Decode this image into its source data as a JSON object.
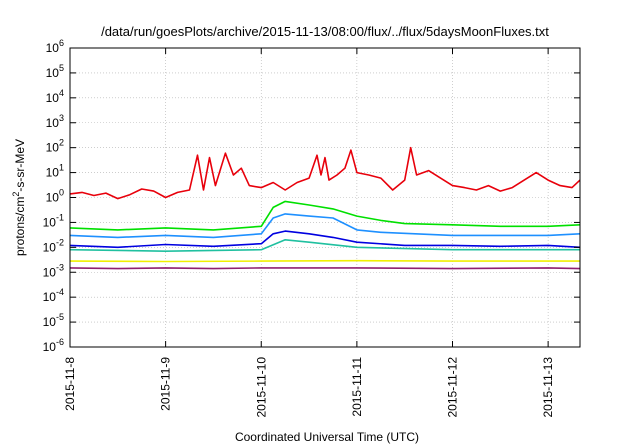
{
  "chart_data": {
    "type": "line",
    "title": "/data/run/goesPlots/archive/2015-11-13/08:00/flux/../flux/5daysMoonFluxes.txt",
    "xlabel": "Coordinated Universal Time (UTC)",
    "ylabel_parts": {
      "prefix": "protons/cm",
      "exponent": "2",
      "suffix": "-s-sr-MeV"
    },
    "y_scale": "log",
    "ylim": [
      1e-06,
      1000000.0
    ],
    "y_ticks": [
      {
        "base": "10",
        "exp": "-6"
      },
      {
        "base": "10",
        "exp": "-5"
      },
      {
        "base": "10",
        "exp": "-4"
      },
      {
        "base": "10",
        "exp": "-3"
      },
      {
        "base": "10",
        "exp": "-2"
      },
      {
        "base": "10",
        "exp": "-1"
      },
      {
        "base": "10",
        "exp": "0"
      },
      {
        "base": "10",
        "exp": "1"
      },
      {
        "base": "10",
        "exp": "2"
      },
      {
        "base": "10",
        "exp": "3"
      },
      {
        "base": "10",
        "exp": "4"
      },
      {
        "base": "10",
        "exp": "5"
      },
      {
        "base": "10",
        "exp": "6"
      }
    ],
    "x_ticks": [
      "2015-11-8",
      "2015-11-9",
      "2015-11-10",
      "2015-11-11",
      "2015-11-12",
      "2015-11-13"
    ],
    "xlim": [
      "2015-11-08 00:00",
      "2015-11-13 08:00"
    ],
    "grid": true,
    "legend": "none",
    "series": [
      {
        "color": "#e8000b",
        "points": [
          [
            "2015-11-08 00:00",
            1.4
          ],
          [
            "2015-11-08 03:00",
            1.6
          ],
          [
            "2015-11-08 06:00",
            1.2
          ],
          [
            "2015-11-08 09:00",
            1.5
          ],
          [
            "2015-11-08 12:00",
            0.9
          ],
          [
            "2015-11-08 15:00",
            1.3
          ],
          [
            "2015-11-08 18:00",
            2.2
          ],
          [
            "2015-11-08 21:00",
            1.8
          ],
          [
            "2015-11-09 00:00",
            1.0
          ],
          [
            "2015-11-09 03:00",
            1.6
          ],
          [
            "2015-11-09 06:00",
            2.0
          ],
          [
            "2015-11-09 08:00",
            50
          ],
          [
            "2015-11-09 09:30",
            2.0
          ],
          [
            "2015-11-09 11:00",
            40
          ],
          [
            "2015-11-09 12:30",
            3.0
          ],
          [
            "2015-11-09 15:00",
            60
          ],
          [
            "2015-11-09 17:00",
            8
          ],
          [
            "2015-11-09 19:00",
            15
          ],
          [
            "2015-11-09 21:00",
            3
          ],
          [
            "2015-11-10 00:00",
            2.5
          ],
          [
            "2015-11-10 03:00",
            4
          ],
          [
            "2015-11-10 06:00",
            2
          ],
          [
            "2015-11-10 09:00",
            4
          ],
          [
            "2015-11-10 12:00",
            6
          ],
          [
            "2015-11-10 14:00",
            50
          ],
          [
            "2015-11-10 15:00",
            8
          ],
          [
            "2015-11-10 16:00",
            40
          ],
          [
            "2015-11-10 17:00",
            5
          ],
          [
            "2015-11-10 19:00",
            8
          ],
          [
            "2015-11-10 21:00",
            15
          ],
          [
            "2015-11-10 22:30",
            80
          ],
          [
            "2015-11-11 00:00",
            10
          ],
          [
            "2015-11-11 03:00",
            8
          ],
          [
            "2015-11-11 06:00",
            6
          ],
          [
            "2015-11-11 09:00",
            2
          ],
          [
            "2015-11-11 12:00",
            5
          ],
          [
            "2015-11-11 13:30",
            100
          ],
          [
            "2015-11-11 15:00",
            8
          ],
          [
            "2015-11-11 18:00",
            12
          ],
          [
            "2015-11-11 21:00",
            6
          ],
          [
            "2015-11-12 00:00",
            3
          ],
          [
            "2015-11-12 03:00",
            2.5
          ],
          [
            "2015-11-12 06:00",
            2
          ],
          [
            "2015-11-12 09:00",
            3
          ],
          [
            "2015-11-12 12:00",
            1.8
          ],
          [
            "2015-11-12 15:00",
            2.5
          ],
          [
            "2015-11-12 18:00",
            5
          ],
          [
            "2015-11-12 21:00",
            10
          ],
          [
            "2015-11-13 00:00",
            5
          ],
          [
            "2015-11-13 03:00",
            3
          ],
          [
            "2015-11-13 06:00",
            2.5
          ],
          [
            "2015-11-13 08:00",
            5
          ]
        ]
      },
      {
        "color": "#00e000",
        "points": [
          [
            "2015-11-08 00:00",
            0.06
          ],
          [
            "2015-11-08 12:00",
            0.05
          ],
          [
            "2015-11-09 00:00",
            0.06
          ],
          [
            "2015-11-09 12:00",
            0.05
          ],
          [
            "2015-11-10 00:00",
            0.07
          ],
          [
            "2015-11-10 03:00",
            0.4
          ],
          [
            "2015-11-10 06:00",
            0.7
          ],
          [
            "2015-11-10 12:00",
            0.5
          ],
          [
            "2015-11-10 18:00",
            0.35
          ],
          [
            "2015-11-11 00:00",
            0.18
          ],
          [
            "2015-11-11 06:00",
            0.12
          ],
          [
            "2015-11-11 12:00",
            0.09
          ],
          [
            "2015-11-12 00:00",
            0.08
          ],
          [
            "2015-11-12 12:00",
            0.07
          ],
          [
            "2015-11-13 00:00",
            0.07
          ],
          [
            "2015-11-13 08:00",
            0.08
          ]
        ]
      },
      {
        "color": "#1e90ff",
        "points": [
          [
            "2015-11-08 00:00",
            0.03
          ],
          [
            "2015-11-08 12:00",
            0.025
          ],
          [
            "2015-11-09 00:00",
            0.03
          ],
          [
            "2015-11-09 12:00",
            0.025
          ],
          [
            "2015-11-10 00:00",
            0.035
          ],
          [
            "2015-11-10 03:00",
            0.15
          ],
          [
            "2015-11-10 06:00",
            0.22
          ],
          [
            "2015-11-10 12:00",
            0.18
          ],
          [
            "2015-11-10 18:00",
            0.15
          ],
          [
            "2015-11-11 00:00",
            0.05
          ],
          [
            "2015-11-11 06:00",
            0.04
          ],
          [
            "2015-11-12 00:00",
            0.03
          ],
          [
            "2015-11-12 12:00",
            0.03
          ],
          [
            "2015-11-13 00:00",
            0.03
          ],
          [
            "2015-11-13 08:00",
            0.035
          ]
        ]
      },
      {
        "color": "#0000e0",
        "points": [
          [
            "2015-11-08 00:00",
            0.012
          ],
          [
            "2015-11-08 12:00",
            0.01
          ],
          [
            "2015-11-09 00:00",
            0.013
          ],
          [
            "2015-11-09 12:00",
            0.011
          ],
          [
            "2015-11-10 00:00",
            0.014
          ],
          [
            "2015-11-10 03:00",
            0.035
          ],
          [
            "2015-11-10 06:00",
            0.045
          ],
          [
            "2015-11-10 12:00",
            0.035
          ],
          [
            "2015-11-10 18:00",
            0.025
          ],
          [
            "2015-11-11 00:00",
            0.016
          ],
          [
            "2015-11-11 12:00",
            0.012
          ],
          [
            "2015-11-12 00:00",
            0.012
          ],
          [
            "2015-11-12 12:00",
            0.011
          ],
          [
            "2015-11-13 00:00",
            0.012
          ],
          [
            "2015-11-13 08:00",
            0.01
          ]
        ]
      },
      {
        "color": "#20c0a0",
        "points": [
          [
            "2015-11-08 00:00",
            0.008
          ],
          [
            "2015-11-09 00:00",
            0.007
          ],
          [
            "2015-11-10 00:00",
            0.008
          ],
          [
            "2015-11-10 06:00",
            0.02
          ],
          [
            "2015-11-10 12:00",
            0.016
          ],
          [
            "2015-11-11 00:00",
            0.01
          ],
          [
            "2015-11-12 00:00",
            0.008
          ],
          [
            "2015-11-13 00:00",
            0.008
          ],
          [
            "2015-11-13 08:00",
            0.008
          ]
        ]
      },
      {
        "color": "#f0f000",
        "points": [
          [
            "2015-11-08 00:00",
            0.0028
          ],
          [
            "2015-11-09 00:00",
            0.0027
          ],
          [
            "2015-11-10 00:00",
            0.0028
          ],
          [
            "2015-11-11 00:00",
            0.0029
          ],
          [
            "2015-11-12 00:00",
            0.0028
          ],
          [
            "2015-11-13 00:00",
            0.0028
          ],
          [
            "2015-11-13 08:00",
            0.0028
          ]
        ]
      },
      {
        "color": "#902070",
        "points": [
          [
            "2015-11-08 00:00",
            0.0015
          ],
          [
            "2015-11-08 12:00",
            0.0014
          ],
          [
            "2015-11-09 00:00",
            0.0015
          ],
          [
            "2015-11-09 12:00",
            0.0014
          ],
          [
            "2015-11-10 00:00",
            0.0015
          ],
          [
            "2015-11-11 00:00",
            0.0015
          ],
          [
            "2015-11-12 00:00",
            0.0014
          ],
          [
            "2015-11-13 00:00",
            0.0015
          ],
          [
            "2015-11-13 08:00",
            0.0014
          ]
        ]
      }
    ]
  }
}
